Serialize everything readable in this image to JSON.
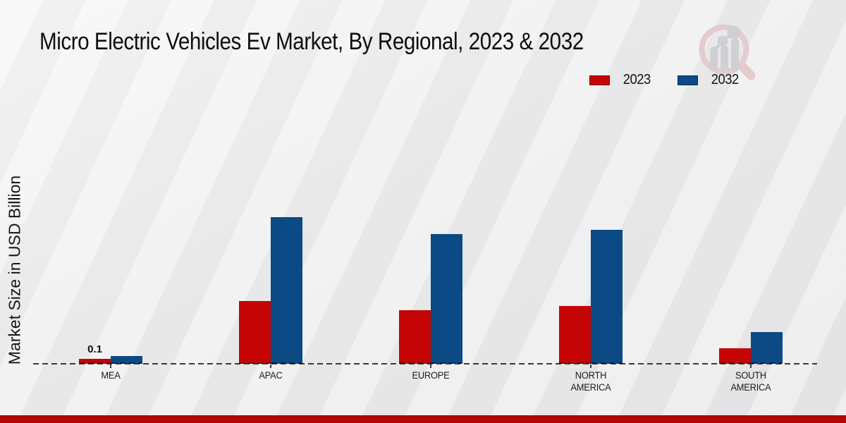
{
  "title": "Micro Electric Vehicles Ev Market, By Regional, 2023 & 2032",
  "y_axis_label": "Market Size in USD Billion",
  "legend": {
    "items": [
      {
        "label": "2023",
        "color": "#c50505",
        "border": "#6e0606"
      },
      {
        "label": "2032",
        "color": "#0b4a84",
        "border": "#062c50"
      }
    ]
  },
  "annotation": {
    "text": "0.1"
  },
  "colors": {
    "series_2023": "#c50505",
    "series_2032": "#0b4a84",
    "bottom_bar": "#b10707",
    "baseline": "#3a3a3a",
    "background": "#ececed"
  },
  "logo": {
    "name": "magnifier-bar-chart-watermark"
  },
  "chart_data": {
    "type": "bar",
    "title": "Micro Electric Vehicles Ev Market, By Regional, 2023 & 2032",
    "categories": [
      "MEA",
      "APAC",
      "EUROPE",
      "NORTH AMERICA",
      "SOUTH AMERICA"
    ],
    "series": [
      {
        "name": "2023",
        "color": "#c50505",
        "values": [
          0.1,
          1.27,
          1.09,
          1.17,
          0.31
        ]
      },
      {
        "name": "2032",
        "color": "#0b4a84",
        "values": [
          0.15,
          2.97,
          2.63,
          2.71,
          0.64
        ]
      }
    ],
    "annotations": [
      {
        "text": "0.1",
        "category": "MEA",
        "series": "2023"
      }
    ],
    "xlabel": "",
    "ylabel": "Market Size in USD Billion",
    "ylim": [
      0,
      3.2
    ],
    "grid": false,
    "axis_style": "dashed-baseline-only",
    "legend_position": "top-right",
    "units": "USD Billion"
  }
}
